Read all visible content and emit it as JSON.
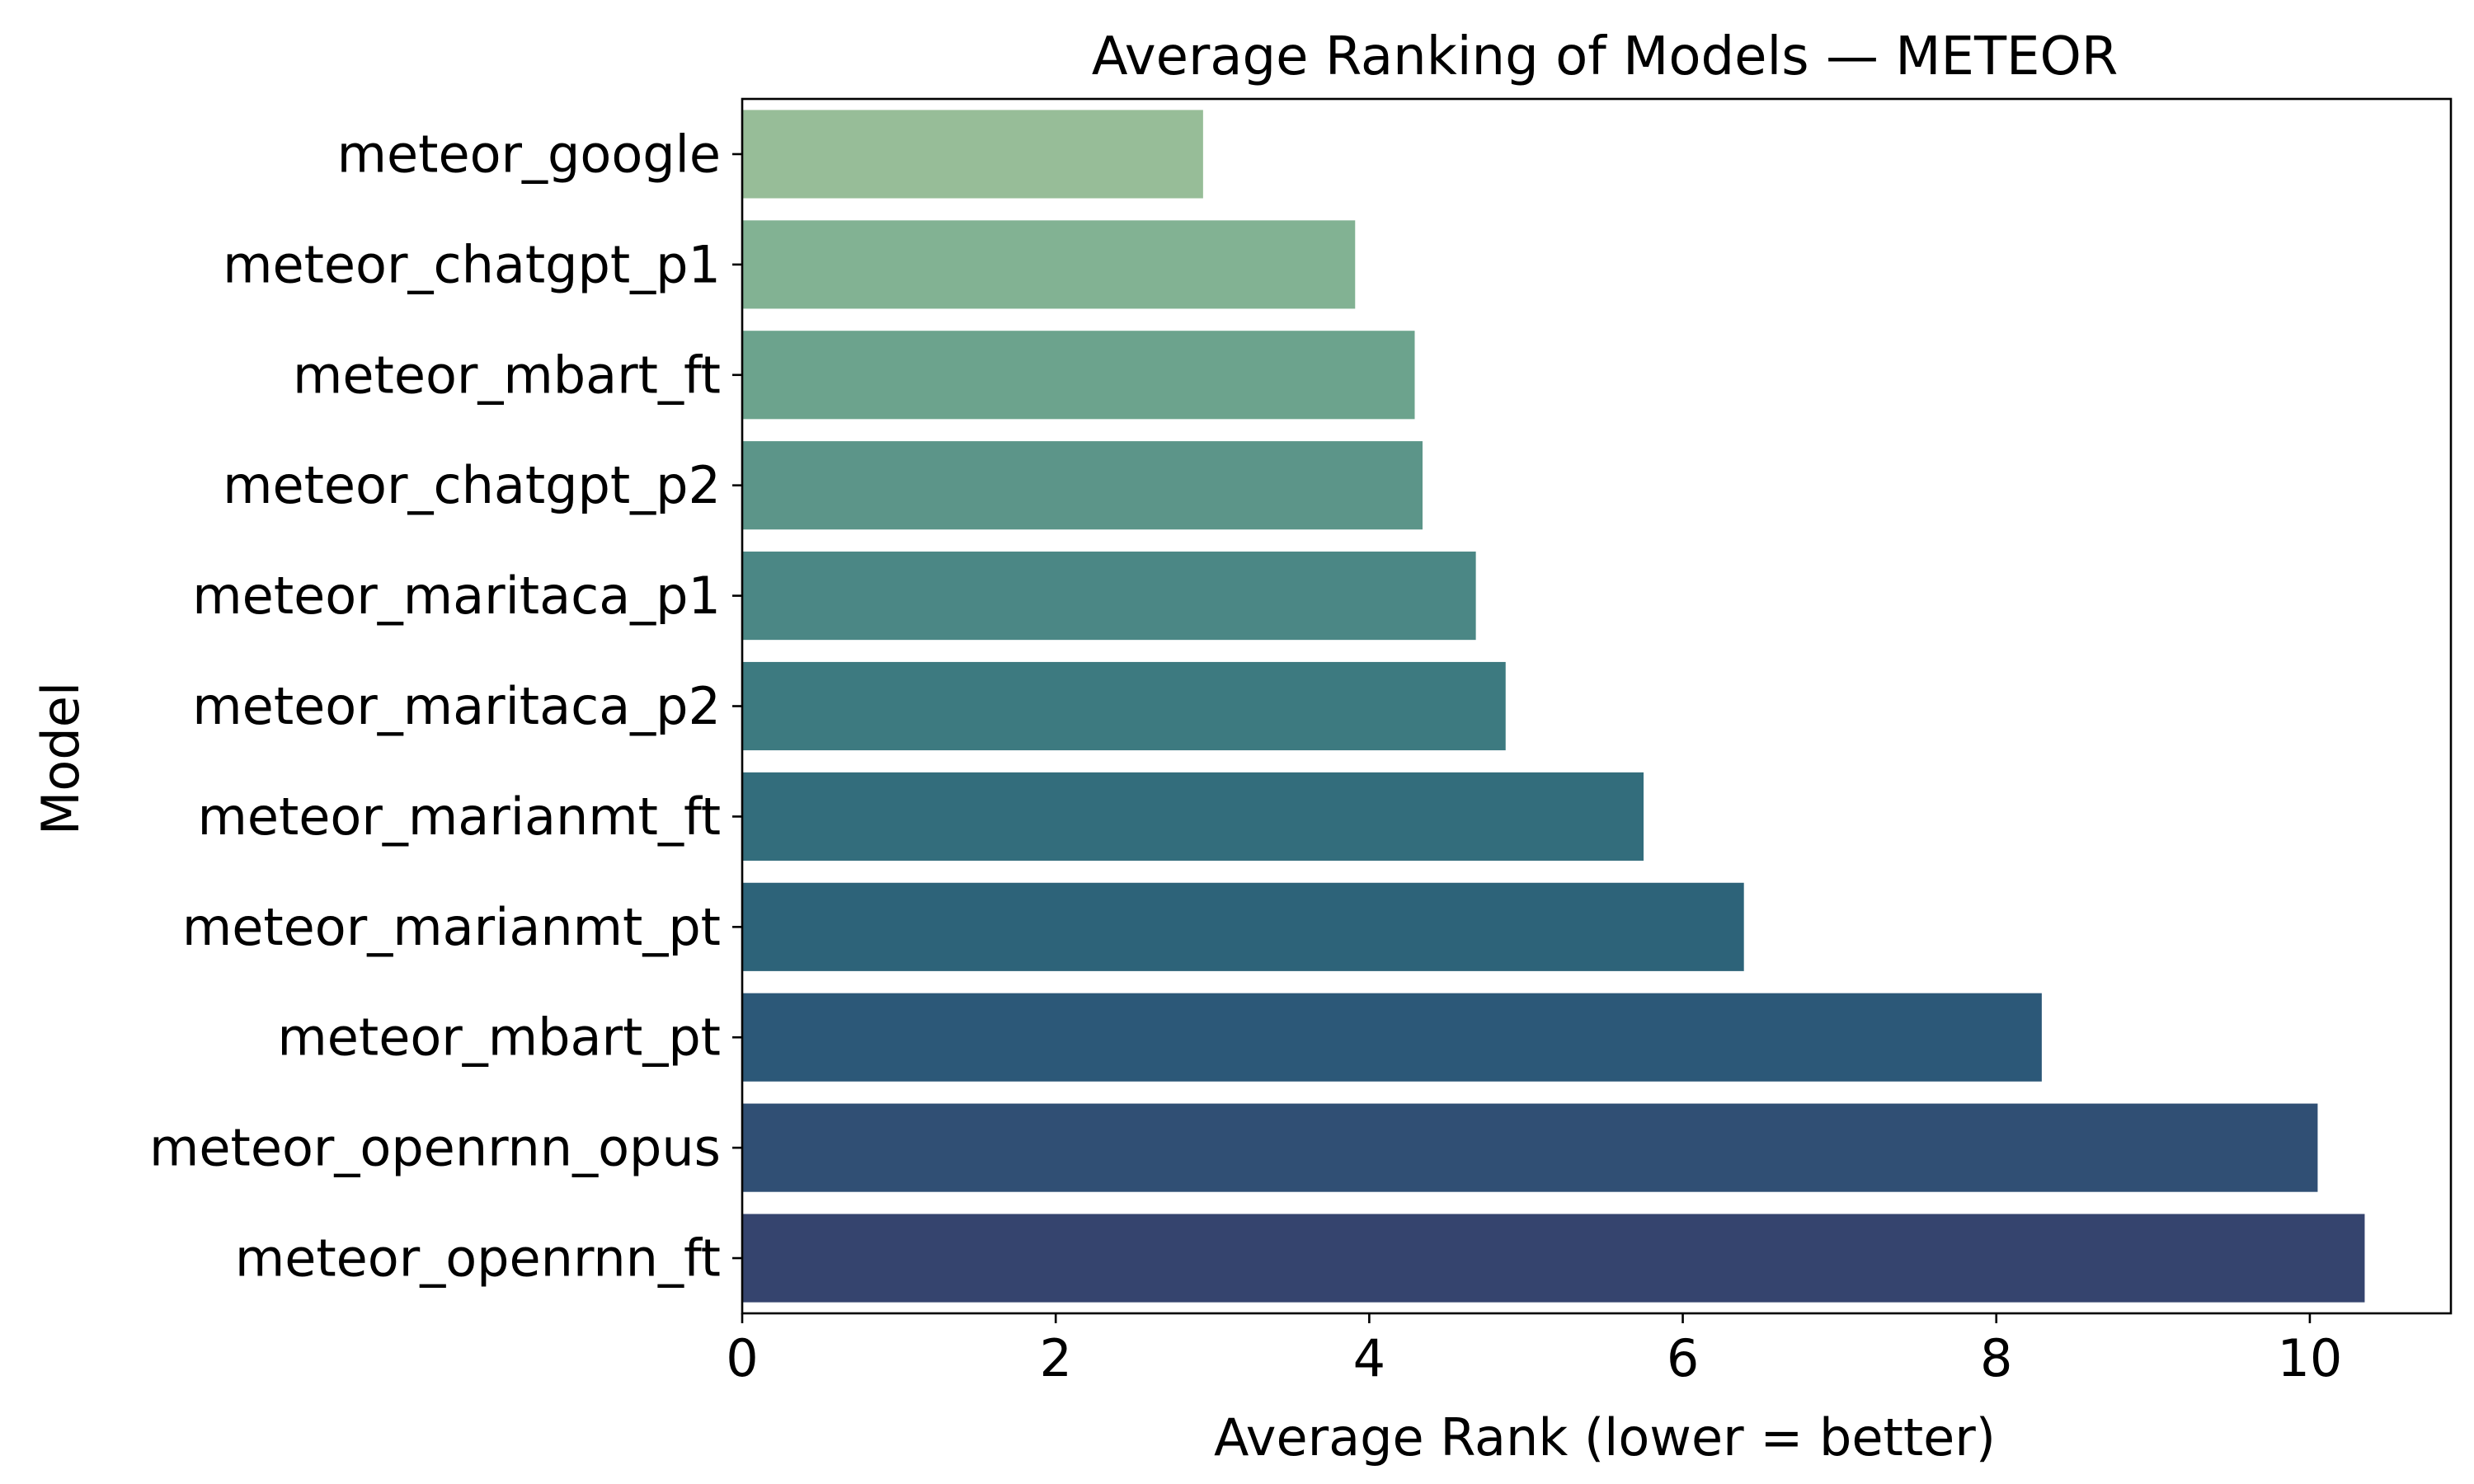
{
  "chart_data": {
    "type": "bar",
    "orientation": "horizontal",
    "title": "Average Ranking of Models — METEOR",
    "xlabel": "Average Rank (lower = better)",
    "ylabel": "Model",
    "categories": [
      "meteor_google",
      "meteor_chatgpt_p1",
      "meteor_mbart_ft",
      "meteor_chatgpt_p2",
      "meteor_maritaca_p1",
      "meteor_maritaca_p2",
      "meteor_marianmt_ft",
      "meteor_marianmt_pt",
      "meteor_mbart_pt",
      "meteor_openrnn_opus",
      "meteor_openrnn_ft"
    ],
    "values": [
      2.94,
      3.91,
      4.29,
      4.34,
      4.68,
      4.87,
      5.75,
      6.39,
      8.29,
      10.05,
      10.35
    ],
    "colors": [
      "#97bd98",
      "#82b293",
      "#6ca38d",
      "#5c9589",
      "#4b8785",
      "#3d7a80",
      "#336d7c",
      "#2d6379",
      "#2c5878",
      "#304f74",
      "#35446e"
    ],
    "xlim": [
      0,
      10.9
    ],
    "xticks": [
      0,
      2,
      4,
      6,
      8,
      10
    ],
    "xtick_labels": [
      "0",
      "2",
      "4",
      "6",
      "8",
      "10"
    ],
    "grid": false,
    "legend": "none"
  }
}
